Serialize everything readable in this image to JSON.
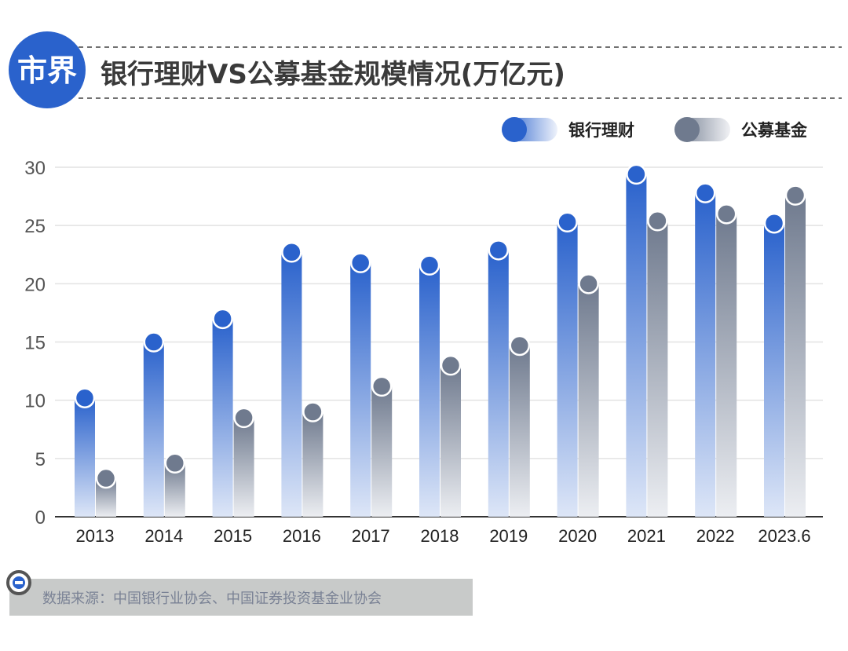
{
  "header": {
    "logo_text": "市界",
    "title": "银行理财VS公募基金规模情况(万亿元)"
  },
  "footer": {
    "source": "数据来源：中国银行业协会、中国证券投资基金业协会",
    "icon": "minus-circle-icon"
  },
  "colors": {
    "bank": "#2a62cc",
    "fund": "#6f7a8e",
    "logo": "#2a62cc"
  },
  "chart_data": {
    "type": "bar",
    "title": "银行理财VS公募基金规模情况(万亿元)",
    "categories": [
      "2013",
      "2014",
      "2015",
      "2016",
      "2017",
      "2018",
      "2019",
      "2020",
      "2021",
      "2022",
      "2023.6"
    ],
    "series": [
      {
        "name": "银行理财",
        "values": [
          10.2,
          15.0,
          17.0,
          22.7,
          21.8,
          21.6,
          22.9,
          25.3,
          29.4,
          27.8,
          25.2
        ]
      },
      {
        "name": "公募基金",
        "values": [
          3.3,
          4.6,
          8.5,
          9.0,
          11.2,
          13.0,
          14.7,
          20.0,
          25.4,
          26.0,
          27.6
        ]
      }
    ],
    "yticks": [
      "0",
      "5",
      "10",
      "15",
      "20",
      "25",
      "30"
    ],
    "ylim": [
      0,
      30
    ],
    "grid": true,
    "legend": "top-right"
  }
}
